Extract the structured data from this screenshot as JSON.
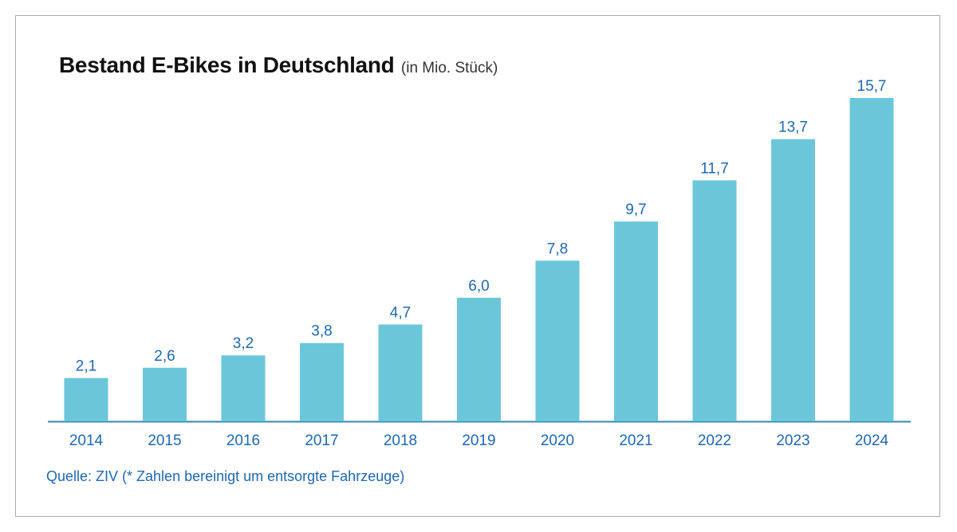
{
  "title": "Bestand E-Bikes in Deutschland",
  "subtitle": "(in Mio. Stück)",
  "source": "Quelle: ZIV (* Zahlen bereinigt um entsorgte Fahrzeuge)",
  "colors": {
    "bar": "#6cc6da",
    "axis": "#2f88b9",
    "label": "#1f67b1",
    "title": "#111111"
  },
  "chart_data": {
    "type": "bar",
    "title": "Bestand E-Bikes in Deutschland",
    "subtitle": "(in Mio. Stück)",
    "categories": [
      "2014",
      "2015",
      "2016",
      "2017",
      "2018",
      "2019",
      "2020",
      "2021",
      "2022",
      "2023",
      "2024"
    ],
    "values": [
      2.1,
      2.6,
      3.2,
      3.8,
      4.7,
      6.0,
      7.8,
      9.7,
      11.7,
      13.7,
      15.7
    ],
    "value_labels": [
      "2,1",
      "2,6",
      "3,2",
      "3,8",
      "4,7",
      "6,0",
      "7,8",
      "9,7",
      "11,7",
      "13,7",
      "15,7"
    ],
    "xlabel": "",
    "ylabel": "",
    "ylim": [
      0,
      15.7
    ],
    "grid": false,
    "legend": "none"
  }
}
